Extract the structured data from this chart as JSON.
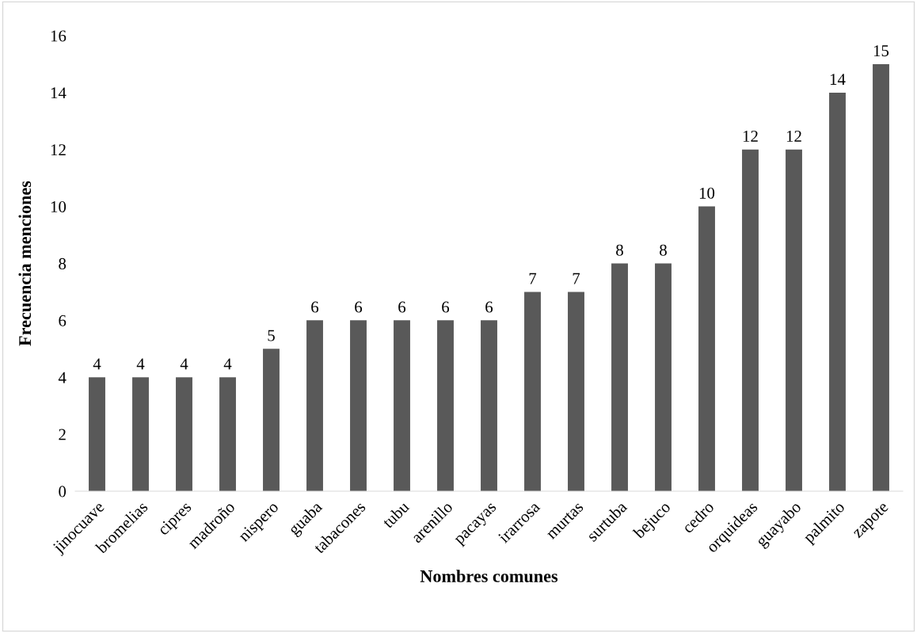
{
  "chart_data": {
    "type": "bar",
    "xlabel": "Nombres comunes",
    "ylabel": "Frecuencia menciones",
    "categories": [
      "jinocuave",
      "bromelias",
      "cipres",
      "madroño",
      "nispero",
      "guaba",
      "tabacones",
      "tubu",
      "arenillo",
      "pacayas",
      "irarrosa",
      "murtas",
      "surtuba",
      "bejuco",
      "cedro",
      "orquideas",
      "guayabo",
      "palmito",
      "zapote"
    ],
    "values": [
      4,
      4,
      4,
      4,
      5,
      6,
      6,
      6,
      6,
      6,
      7,
      7,
      8,
      8,
      10,
      12,
      12,
      14,
      15
    ],
    "color": "#595959",
    "ylim": [
      0,
      16
    ],
    "yticks": [
      0,
      2,
      4,
      6,
      8,
      10,
      12,
      14,
      16
    ],
    "data_labels": true,
    "grid": false
  }
}
